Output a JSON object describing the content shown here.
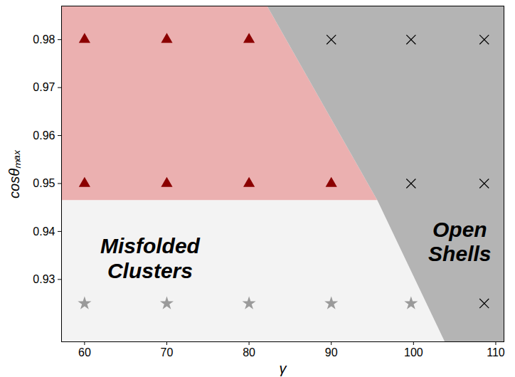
{
  "chart_data": {
    "type": "scatter",
    "x_label": "γ",
    "y_label": "cosθₘₐₓ",
    "xlim": [
      57.2,
      111
    ],
    "ylim": [
      0.917,
      0.987
    ],
    "xticks": [
      60,
      70,
      80,
      90,
      100,
      110
    ],
    "yticks": [
      0.93,
      0.94,
      0.95,
      0.96,
      0.97,
      0.98
    ],
    "series": [
      {
        "marker": "triangle",
        "color": "#8b0000",
        "x": [
          60,
          70,
          80,
          60,
          70,
          80,
          90
        ],
        "values": [
          0.98,
          0.98,
          0.98,
          0.95,
          0.95,
          0.95,
          0.95
        ]
      },
      {
        "marker": "times",
        "color": "#000000",
        "x": [
          90,
          99.7,
          108.6,
          99.7,
          108.6,
          108.6
        ],
        "values": [
          0.98,
          0.98,
          0.98,
          0.95,
          0.95,
          0.925
        ]
      },
      {
        "marker": "star",
        "color": "#9a9a9a",
        "x": [
          60,
          70,
          80,
          90,
          99.7
        ],
        "values": [
          0.925,
          0.925,
          0.925,
          0.925,
          0.925
        ]
      }
    ],
    "regions": [
      {
        "color": "#ebb0b0",
        "x": [
          57.2,
          82.2,
          95.6,
          57.2
        ],
        "y": [
          0.987,
          0.987,
          0.9465,
          0.9465
        ]
      },
      {
        "label": "Misfolded Clusters",
        "color": "#f3f3f3",
        "x": [
          57.2,
          95.6,
          103.8,
          57.2
        ],
        "y": [
          0.9465,
          0.9465,
          0.917,
          0.917
        ]
      },
      {
        "label": "Open Shells",
        "color": "#b4b4b4",
        "x": [
          82.2,
          111,
          111,
          103.8,
          95.6
        ],
        "y": [
          0.987,
          0.987,
          0.917,
          0.917,
          0.9465
        ]
      }
    ]
  }
}
